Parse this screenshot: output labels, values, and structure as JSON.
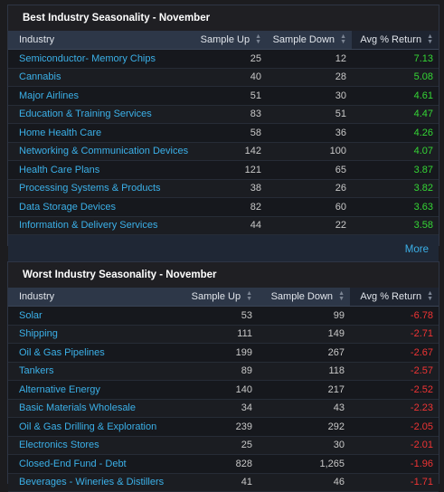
{
  "best": {
    "title": "Best Industry Seasonality - November",
    "columns": {
      "industry": "Industry",
      "up": "Sample Up",
      "down": "Sample Down",
      "ret": "Avg % Return"
    },
    "rows": [
      {
        "name": "Semiconductor- Memory Chips",
        "up": "25",
        "down": "12",
        "ret": "7.13"
      },
      {
        "name": "Cannabis",
        "up": "40",
        "down": "28",
        "ret": "5.08"
      },
      {
        "name": "Major Airlines",
        "up": "51",
        "down": "30",
        "ret": "4.61"
      },
      {
        "name": "Education & Training Services",
        "up": "83",
        "down": "51",
        "ret": "4.47"
      },
      {
        "name": "Home Health Care",
        "up": "58",
        "down": "36",
        "ret": "4.26"
      },
      {
        "name": "Networking & Communication Devices",
        "up": "142",
        "down": "100",
        "ret": "4.07"
      },
      {
        "name": "Health Care Plans",
        "up": "121",
        "down": "65",
        "ret": "3.87"
      },
      {
        "name": "Processing Systems & Products",
        "up": "38",
        "down": "26",
        "ret": "3.82"
      },
      {
        "name": "Data Storage Devices",
        "up": "82",
        "down": "60",
        "ret": "3.63"
      },
      {
        "name": "Information & Delivery Services",
        "up": "44",
        "down": "22",
        "ret": "3.58"
      }
    ],
    "more_label": "More"
  },
  "worst": {
    "title": "Worst Industry Seasonality - November",
    "columns": {
      "industry": "Industry",
      "up": "Sample Up",
      "down": "Sample Down",
      "ret": "Avg % Return"
    },
    "rows": [
      {
        "name": "Solar",
        "up": "53",
        "down": "99",
        "ret": "-6.78"
      },
      {
        "name": "Shipping",
        "up": "111",
        "down": "149",
        "ret": "-2.71"
      },
      {
        "name": "Oil & Gas Pipelines",
        "up": "199",
        "down": "267",
        "ret": "-2.67"
      },
      {
        "name": "Tankers",
        "up": "89",
        "down": "118",
        "ret": "-2.57"
      },
      {
        "name": "Alternative Energy",
        "up": "140",
        "down": "217",
        "ret": "-2.52"
      },
      {
        "name": "Basic Materials Wholesale",
        "up": "34",
        "down": "43",
        "ret": "-2.23"
      },
      {
        "name": "Oil & Gas Drilling & Exploration",
        "up": "239",
        "down": "292",
        "ret": "-2.05"
      },
      {
        "name": "Electronics Stores",
        "up": "25",
        "down": "30",
        "ret": "-2.01"
      },
      {
        "name": "Closed-End Fund - Debt",
        "up": "828",
        "down": "1,265",
        "ret": "-1.96"
      },
      {
        "name": "Beverages - Wineries & Distillers",
        "up": "41",
        "down": "46",
        "ret": "-1.71"
      }
    ]
  },
  "colors": {
    "positive": "#35d635",
    "negative": "#f03434",
    "link": "#3bb0e8"
  },
  "icons": {
    "sort": "sort-arrows-icon"
  }
}
